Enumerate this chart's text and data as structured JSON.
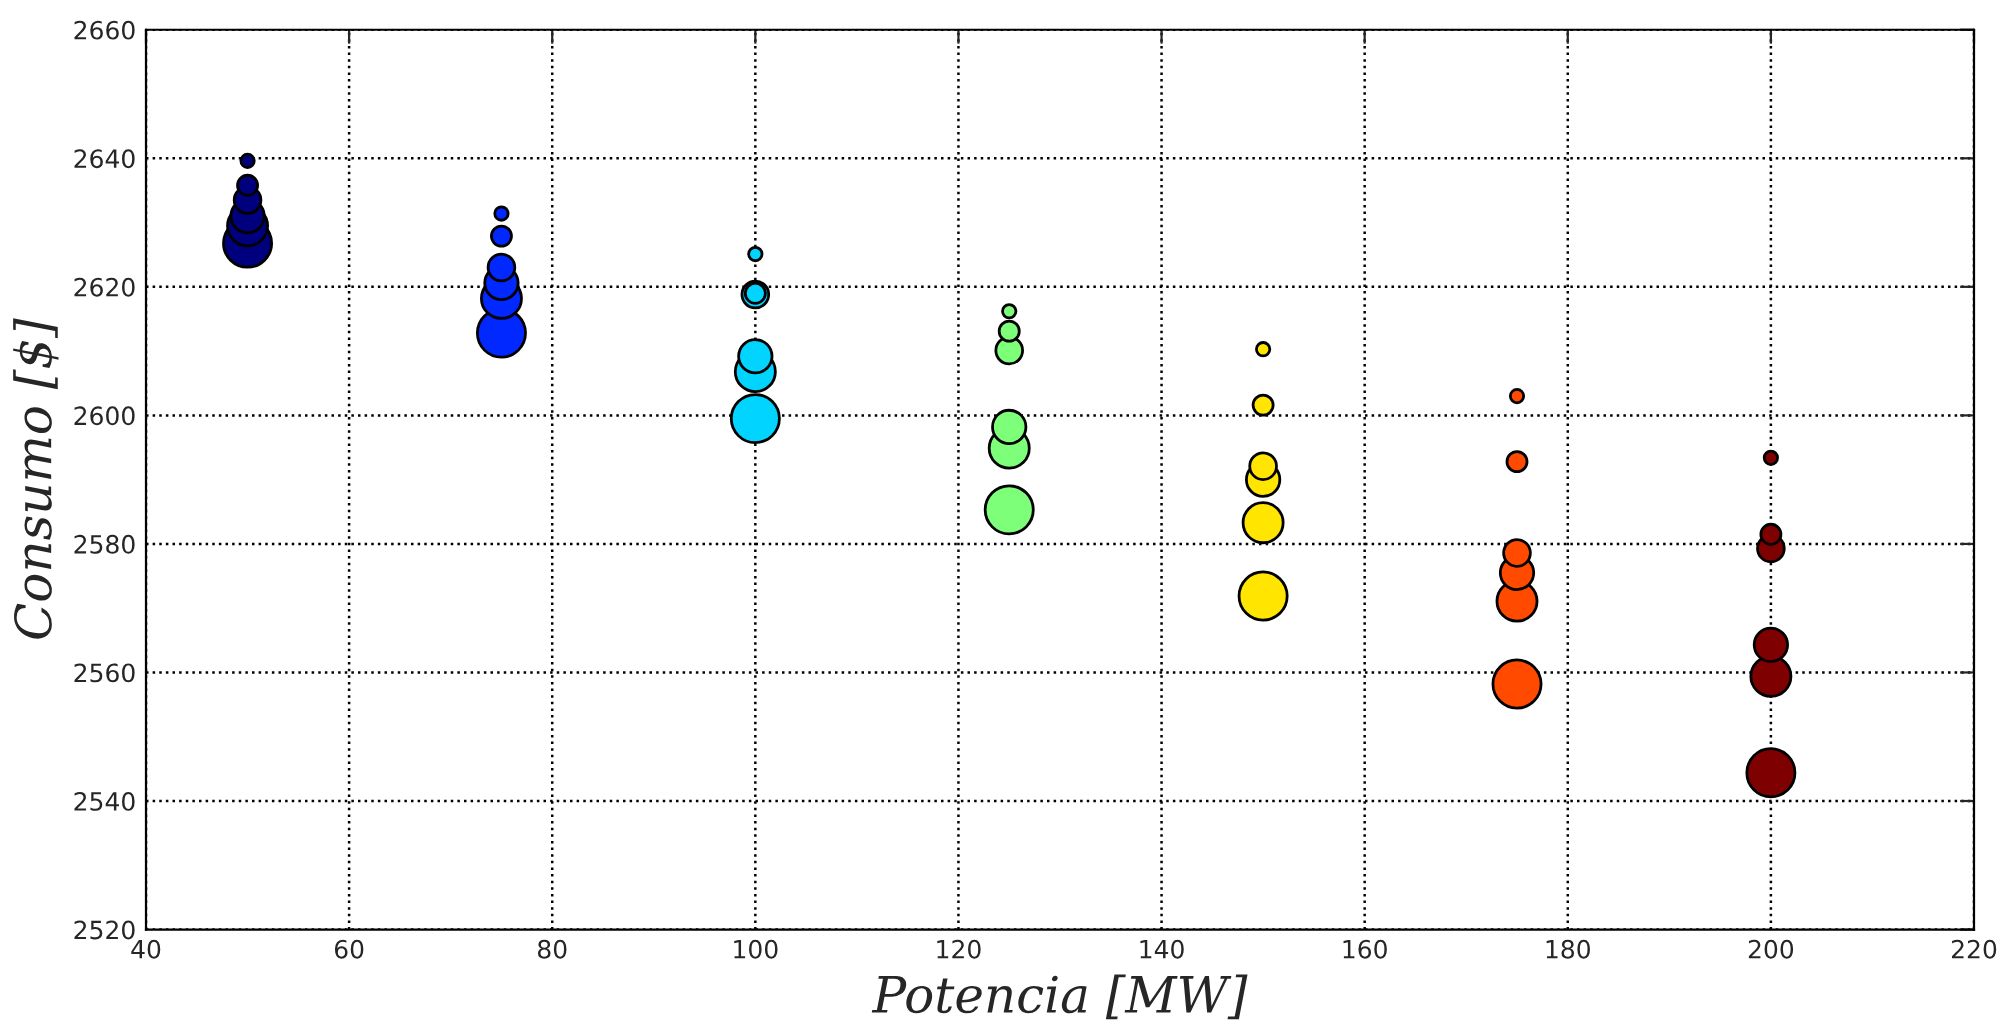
{
  "chart_data": {
    "type": "bubble",
    "xlabel": "Potencia [MW]",
    "ylabel": "Consumo [$]",
    "xlim": [
      40,
      220
    ],
    "xticks": [
      40,
      60,
      80,
      100,
      120,
      140,
      160,
      180,
      200,
      220
    ],
    "ylim": [
      2520,
      2660
    ],
    "yticks": [
      2520,
      2540,
      2560,
      2580,
      2600,
      2620,
      2640,
      2660
    ],
    "grid": true,
    "series": [
      {
        "color": "#00007f",
        "x": [
          50,
          50,
          50,
          50,
          50,
          50
        ],
        "values": [
          2639.6,
          2635.8,
          2633.5,
          2631,
          2629.5,
          2626.8
        ],
        "sizes": [
          0.077,
          0.174,
          0.309,
          0.482,
          0.694,
          1
        ]
      },
      {
        "color": "#0028ff",
        "x": [
          75,
          75,
          75,
          75,
          75,
          75
        ],
        "values": [
          2631.4,
          2627.9,
          2623,
          2620.6,
          2618.2,
          2612.8
        ],
        "sizes": [
          0.077,
          0.174,
          0.309,
          0.482,
          0.694,
          1
        ]
      },
      {
        "color": "#00d4ff",
        "x": [
          100,
          100,
          100,
          100,
          100,
          100
        ],
        "values": [
          2625.1,
          2619,
          2618.8,
          2609.2,
          2606.8,
          2599.5
        ],
        "sizes": [
          0.077,
          0.174,
          0.309,
          0.482,
          0.694,
          1
        ]
      },
      {
        "color": "#7dff7a",
        "x": [
          125,
          125,
          125,
          125,
          125,
          125
        ],
        "values": [
          2616.2,
          2613.1,
          2610.1,
          2598.2,
          2594.9,
          2585.3
        ],
        "sizes": [
          0.077,
          0.174,
          0.309,
          0.482,
          0.694,
          1
        ]
      },
      {
        "color": "#ffe500",
        "x": [
          150,
          150,
          150,
          150,
          150,
          150
        ],
        "values": [
          2610.3,
          2601.6,
          2592.1,
          2590,
          2583.3,
          2571.9
        ],
        "sizes": [
          0.077,
          0.174,
          0.309,
          0.482,
          0.694,
          1
        ]
      },
      {
        "color": "#ff4a00",
        "x": [
          175,
          175,
          175,
          175,
          175,
          175
        ],
        "values": [
          2603,
          2592.8,
          2578.6,
          2575.5,
          2571.1,
          2558.2
        ],
        "sizes": [
          0.077,
          0.174,
          0.309,
          0.482,
          0.694,
          1
        ]
      },
      {
        "color": "#7f0000",
        "x": [
          200,
          200,
          200,
          200,
          200,
          200
        ],
        "values": [
          2593.4,
          2581.5,
          2579.3,
          2564.3,
          2559.4,
          2544.4
        ],
        "sizes": [
          0.077,
          0.174,
          0.309,
          0.482,
          0.694,
          1
        ]
      }
    ]
  }
}
